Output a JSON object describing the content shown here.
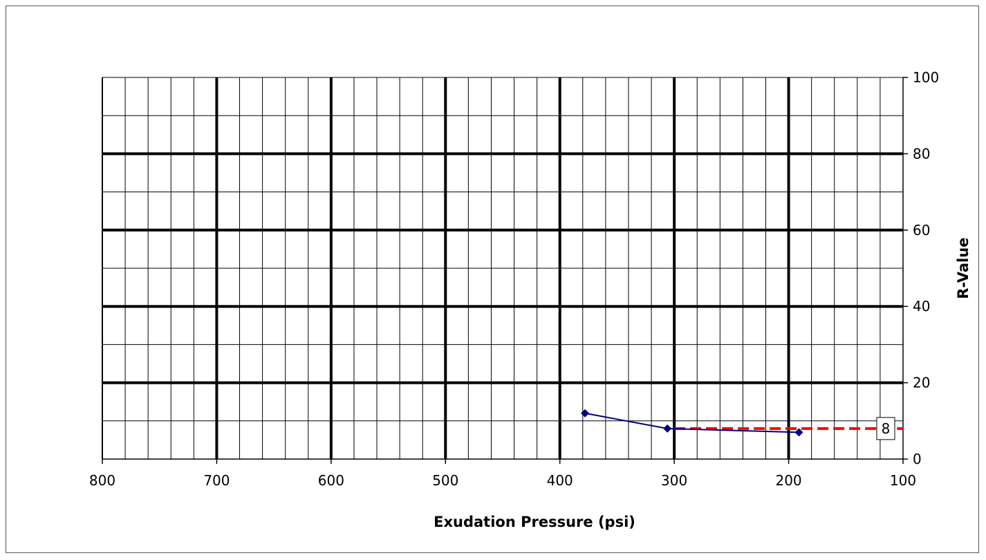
{
  "chart_data": {
    "type": "line",
    "xlabel": "Exudation Pressure (psi)",
    "ylabel": "R-Value",
    "xlim": [
      800,
      100
    ],
    "ylim": [
      0,
      100
    ],
    "x_reversed": true,
    "y_axis_side": "right",
    "x_ticks": [
      800,
      700,
      600,
      500,
      400,
      300,
      200,
      100
    ],
    "y_ticks": [
      0,
      20,
      40,
      60,
      80,
      100
    ],
    "grid": {
      "x_minor_step": 20,
      "x_major_step": 100,
      "y_minor_step": 10,
      "y_major_step": 20
    },
    "series": [
      {
        "color": "#000080",
        "marker": "diamond",
        "points": [
          {
            "x": 378,
            "y": 12
          },
          {
            "x": 306,
            "y": 8
          },
          {
            "x": 191,
            "y": 7
          }
        ]
      }
    ],
    "reference_line": {
      "color": "#ff0000",
      "style": "dashed",
      "y": 8,
      "x_from": 300,
      "x_to": 100,
      "label": "8"
    }
  }
}
